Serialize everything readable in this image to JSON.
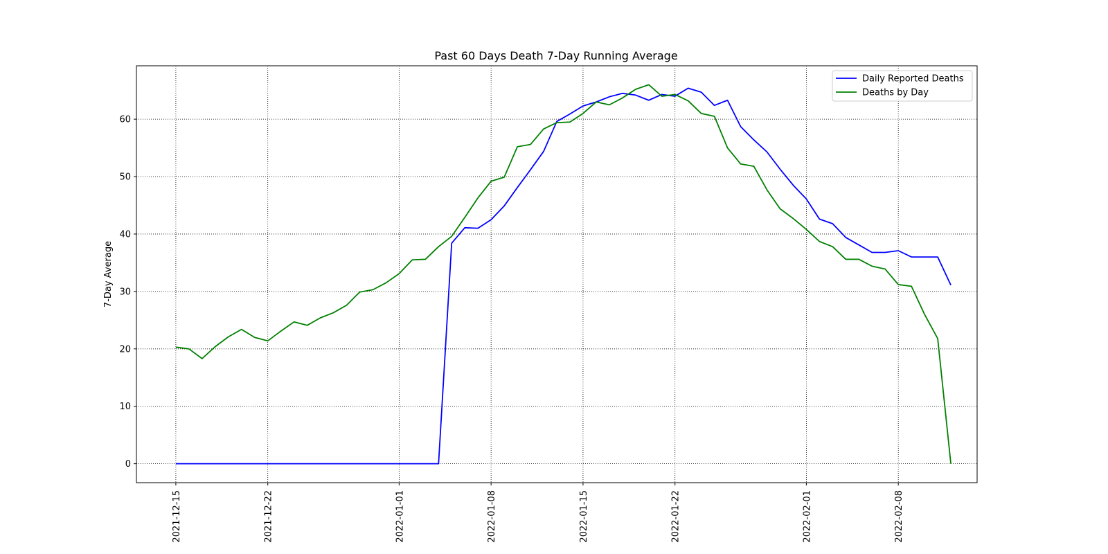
{
  "chart_data": {
    "type": "line",
    "title": "Past 60 Days Death 7-Day Running Average",
    "xlabel": "",
    "ylabel": "7-Day Average",
    "x_tick_labels": [
      "2021-12-15",
      "2021-12-22",
      "2022-01-01",
      "2022-01-08",
      "2022-01-15",
      "2022-01-22",
      "2022-02-01",
      "2022-02-08"
    ],
    "y_ticks": [
      0,
      10,
      20,
      30,
      40,
      50,
      60
    ],
    "xlim": [
      "2021-12-12",
      "2022-02-14"
    ],
    "ylim": [
      -3.3,
      69.3
    ],
    "grid": true,
    "legend_position": "top-right",
    "x": [
      "2021-12-15",
      "2021-12-16",
      "2021-12-17",
      "2021-12-18",
      "2021-12-19",
      "2021-12-20",
      "2021-12-21",
      "2021-12-22",
      "2021-12-23",
      "2021-12-24",
      "2021-12-25",
      "2021-12-26",
      "2021-12-27",
      "2021-12-28",
      "2021-12-29",
      "2021-12-30",
      "2021-12-31",
      "2022-01-01",
      "2022-01-02",
      "2022-01-03",
      "2022-01-04",
      "2022-01-05",
      "2022-01-06",
      "2022-01-07",
      "2022-01-08",
      "2022-01-09",
      "2022-01-10",
      "2022-01-11",
      "2022-01-12",
      "2022-01-13",
      "2022-01-14",
      "2022-01-15",
      "2022-01-16",
      "2022-01-17",
      "2022-01-18",
      "2022-01-19",
      "2022-01-20",
      "2022-01-21",
      "2022-01-22",
      "2022-01-23",
      "2022-01-24",
      "2022-01-25",
      "2022-01-26",
      "2022-01-27",
      "2022-01-28",
      "2022-01-29",
      "2022-01-30",
      "2022-01-31",
      "2022-02-01",
      "2022-02-02",
      "2022-02-03",
      "2022-02-04",
      "2022-02-05",
      "2022-02-06",
      "2022-02-07",
      "2022-02-08",
      "2022-02-09",
      "2022-02-10",
      "2022-02-11",
      "2022-02-12"
    ],
    "series": [
      {
        "name": "Daily Reported Deaths",
        "color": "#0000ff",
        "values": [
          0,
          0,
          0,
          0,
          0,
          0,
          0,
          0,
          0,
          0,
          0,
          0,
          0,
          0,
          0,
          0,
          0,
          0,
          0,
          0,
          0,
          38.4,
          41.1,
          41.0,
          42.5,
          44.9,
          48.1,
          51.2,
          54.4,
          59.6,
          60.9,
          62.3,
          63.0,
          63.9,
          64.5,
          64.2,
          63.3,
          64.3,
          64.0,
          65.4,
          64.7,
          62.4,
          63.3,
          58.7,
          56.4,
          54.3,
          51.3,
          48.5,
          46.1,
          42.6,
          41.8,
          39.4,
          38.1,
          36.8,
          36.8,
          37.1,
          36.0,
          36.0,
          36.0,
          31.1
        ]
      },
      {
        "name": "Deaths by Day",
        "color": "#008000",
        "values": [
          20.3,
          20.0,
          18.3,
          20.4,
          22.1,
          23.4,
          22.0,
          21.4,
          23.1,
          24.7,
          24.1,
          25.4,
          26.3,
          27.6,
          29.9,
          30.3,
          31.5,
          33.1,
          35.5,
          35.6,
          37.8,
          39.6,
          42.9,
          46.3,
          49.2,
          49.9,
          55.2,
          55.6,
          58.3,
          59.4,
          59.5,
          61.0,
          63.0,
          62.5,
          63.7,
          65.2,
          66.0,
          64.0,
          64.3,
          63.2,
          61.0,
          60.5,
          55.0,
          52.2,
          51.8,
          47.7,
          44.4,
          42.7,
          40.8,
          38.7,
          37.8,
          35.6,
          35.6,
          34.4,
          33.9,
          31.2,
          30.9,
          26.0,
          21.8,
          0
        ]
      }
    ]
  }
}
